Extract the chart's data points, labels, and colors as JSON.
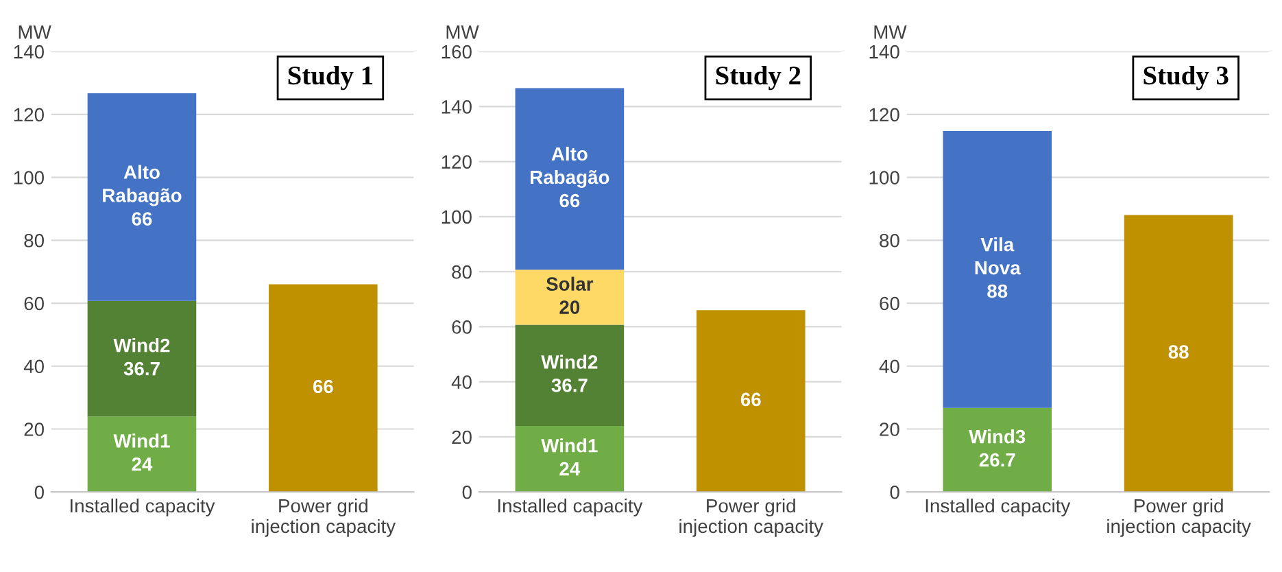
{
  "chart_data": [
    {
      "type": "bar",
      "title": "Study 1",
      "ylabel": "MW",
      "stacked": true,
      "grid": "y",
      "legend": false,
      "categories": [
        "Installed capacity",
        "Power grid\ninjection capacity"
      ],
      "ylim": [
        0,
        140
      ],
      "yticks": [
        0,
        20,
        40,
        60,
        80,
        100,
        120,
        140
      ],
      "series": [
        {
          "name": "Wind1",
          "color": "#70ad47",
          "values": [
            24,
            null
          ],
          "value_labels": [
            "24",
            null
          ]
        },
        {
          "name": "Wind2",
          "color": "#548235",
          "values": [
            36.7,
            null
          ],
          "value_labels": [
            "36.7",
            null
          ]
        },
        {
          "name": "Alto\nRabagão",
          "color": "#4472c4",
          "values": [
            66,
            null
          ],
          "value_labels": [
            "66",
            null
          ]
        },
        {
          "color": "#bf9000",
          "values": [
            null,
            66
          ],
          "value_labels": [
            null,
            "66"
          ]
        }
      ]
    },
    {
      "type": "bar",
      "title": "Study 2",
      "ylabel": "MW",
      "stacked": true,
      "grid": "y",
      "legend": false,
      "categories": [
        "Installed capacity",
        "Power grid\ninjection capacity"
      ],
      "ylim": [
        0,
        160
      ],
      "yticks": [
        0,
        20,
        40,
        60,
        80,
        100,
        120,
        140,
        160
      ],
      "series": [
        {
          "name": "Wind1",
          "color": "#70ad47",
          "values": [
            24,
            null
          ],
          "value_labels": [
            "24",
            null
          ]
        },
        {
          "name": "Wind2",
          "color": "#548235",
          "values": [
            36.7,
            null
          ],
          "value_labels": [
            "36.7",
            null
          ]
        },
        {
          "name": "Solar",
          "color": "#ffd966",
          "values": [
            20,
            null
          ],
          "value_labels": [
            "20",
            null
          ]
        },
        {
          "name": "Alto\nRabagão",
          "color": "#4472c4",
          "values": [
            66,
            null
          ],
          "value_labels": [
            "66",
            null
          ]
        },
        {
          "color": "#bf9000",
          "values": [
            null,
            66
          ],
          "value_labels": [
            null,
            "66"
          ]
        }
      ]
    },
    {
      "type": "bar",
      "title": "Study 3",
      "ylabel": "MW",
      "stacked": true,
      "grid": "y",
      "legend": false,
      "categories": [
        "Installed capacity",
        "Power grid\ninjection capacity"
      ],
      "ylim": [
        0,
        140
      ],
      "yticks": [
        0,
        20,
        40,
        60,
        80,
        100,
        120,
        140
      ],
      "series": [
        {
          "name": "Wind3",
          "color": "#70ad47",
          "values": [
            26.7,
            null
          ],
          "value_labels": [
            "26.7",
            null
          ]
        },
        {
          "name": "Vila\nNova",
          "color": "#4472c4",
          "values": [
            88,
            null
          ],
          "value_labels": [
            "88",
            null
          ]
        },
        {
          "color": "#bf9000",
          "values": [
            null,
            88
          ],
          "value_labels": [
            null,
            "88"
          ]
        }
      ]
    }
  ]
}
